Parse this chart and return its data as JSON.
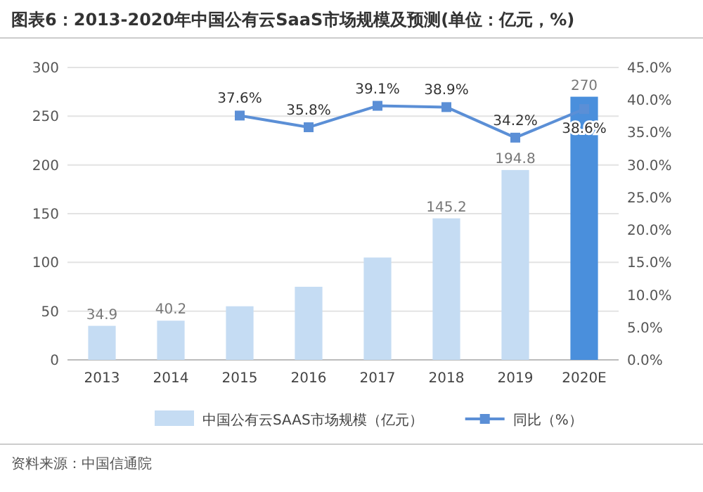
{
  "chart_data": {
    "type": "bar",
    "title": "图表6：2013-2020年中国公有云SaaS市场规模及预测(单位：亿元，%)",
    "categories": [
      "2013",
      "2014",
      "2015",
      "2016",
      "2017",
      "2018",
      "2019",
      "2020E"
    ],
    "series": [
      {
        "name": "中国公有云SAAS市场规模（亿元）",
        "colors": [
          "#c5dcf3",
          "#c5dcf3",
          "#c5dcf3",
          "#c5dcf3",
          "#c5dcf3",
          "#c5dcf3",
          "#c5dcf3",
          "#4a8fdc"
        ],
        "values": [
          34.9,
          40.2,
          55,
          75,
          105,
          145.2,
          194.8,
          270
        ],
        "value_labels": [
          "34.9",
          "40.2",
          null,
          null,
          null,
          "145.2",
          "194.8",
          "270"
        ]
      },
      {
        "name": "同比（%）",
        "type": "line",
        "axis": "y2",
        "color": "#5b8fd6",
        "marker": "square",
        "values": [
          null,
          null,
          37.6,
          35.8,
          39.1,
          38.9,
          34.2,
          38.6
        ],
        "value_labels": [
          null,
          null,
          "37.6%",
          "35.8%",
          "39.1%",
          "38.9%",
          "34.2%",
          "38.6%"
        ]
      }
    ],
    "ylim": [
      0,
      300
    ],
    "yticks": [
      0,
      50,
      100,
      150,
      200,
      250,
      300
    ],
    "y2lim": [
      0,
      45
    ],
    "y2ticks": [
      {
        "value": 0,
        "label": "0.0%"
      },
      {
        "value": 5,
        "label": "5.0%"
      },
      {
        "value": 10,
        "label": "10.0%"
      },
      {
        "value": 15,
        "label": "15.0%"
      },
      {
        "value": 20,
        "label": "20.0%"
      },
      {
        "value": 25,
        "label": "25.0%"
      },
      {
        "value": 30,
        "label": "30.0%"
      },
      {
        "value": 35,
        "label": "35.0%"
      },
      {
        "value": 40,
        "label": "40.0%"
      },
      {
        "value": 45,
        "label": "45.0%"
      }
    ],
    "grid": "y",
    "legend": "bottom",
    "annotations": [
      "资料来源：中国信通院"
    ]
  }
}
